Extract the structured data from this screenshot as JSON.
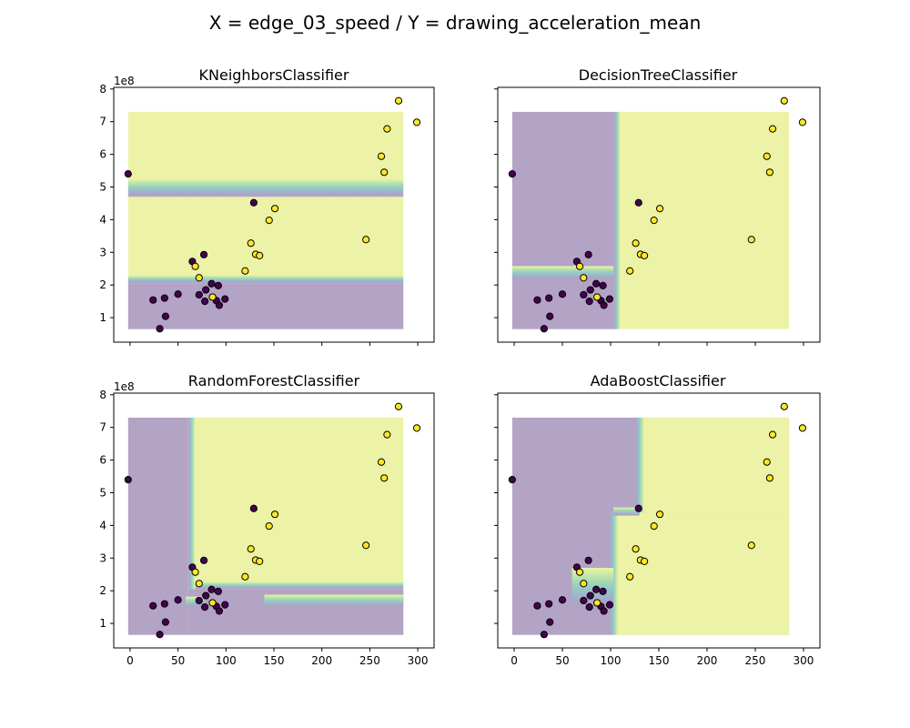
{
  "suptitle": "X = edge_03_speed / Y = drawing_acceleration_mean",
  "colors": {
    "class0_region": "#b3a3c4",
    "class1_region": "#ecf3a6",
    "class0_point": "#440154",
    "class1_point": "#fde725",
    "edge": "#000000",
    "boundary_band": [
      "#b3a3c4",
      "#a9a6c7",
      "#9fb4c9",
      "#97c4c7",
      "#9ad2bd",
      "#b1dfae",
      "#cdeba7",
      "#ecf3a6"
    ]
  },
  "chart_data": [
    {
      "type": "scatter",
      "title": "KNeighborsClassifier",
      "xlim": [
        -17,
        317
      ],
      "ylim": [
        25000000,
        805000000
      ],
      "x_ticks": [
        0,
        50,
        100,
        150,
        200,
        250,
        300
      ],
      "x_tick_labels_visible": false,
      "y_ticks": [
        100000000,
        200000000,
        300000000,
        400000000,
        500000000,
        600000000,
        700000000,
        800000000
      ],
      "y_tick_labels": [
        "1",
        "2",
        "3",
        "4",
        "5",
        "6",
        "7",
        "8"
      ],
      "y_tick_labels_visible": true,
      "y_offset_label": "1e8",
      "decision_grid": {
        "x_range": [
          -2,
          285
        ],
        "y_range": [
          65000000,
          730000000
        ]
      },
      "regions": [
        {
          "y_from": 65000000,
          "y_to": 205000000,
          "class": 0
        },
        {
          "y_from": 205000000,
          "y_to": 230000000,
          "class": "band"
        },
        {
          "y_from": 230000000,
          "y_to": 470000000,
          "class": 1
        },
        {
          "y_from": 470000000,
          "y_to": 525000000,
          "class": "band"
        },
        {
          "y_from": 525000000,
          "y_to": 730000000,
          "class": 1
        }
      ]
    },
    {
      "type": "scatter",
      "title": "DecisionTreeClassifier",
      "xlim": [
        -17,
        317
      ],
      "ylim": [
        25000000,
        805000000
      ],
      "x_ticks": [
        0,
        50,
        100,
        150,
        200,
        250,
        300
      ],
      "x_tick_labels_visible": false,
      "y_ticks": [
        100000000,
        200000000,
        300000000,
        400000000,
        500000000,
        600000000,
        700000000,
        800000000
      ],
      "y_tick_labels": [
        "1",
        "2",
        "3",
        "4",
        "5",
        "6",
        "7",
        "8"
      ],
      "y_tick_labels_visible": false,
      "y_offset_label": "",
      "decision_grid": {
        "x_range": [
          -2,
          285
        ],
        "y_range": [
          65000000,
          730000000
        ]
      },
      "regions": [
        {
          "x_from": -2,
          "x_to": 103,
          "y_from": 65000000,
          "y_to": 730000000,
          "class": 0
        },
        {
          "x_from": 103,
          "x_to": 110,
          "y_from": 65000000,
          "y_to": 730000000,
          "class": "band"
        },
        {
          "x_from": 110,
          "x_to": 285,
          "y_from": 65000000,
          "y_to": 730000000,
          "class": 1
        },
        {
          "x_from": -2,
          "x_to": 103,
          "y_from": 218000000,
          "y_to": 258000000,
          "class": "band"
        }
      ]
    },
    {
      "type": "scatter",
      "title": "RandomForestClassifier",
      "xlim": [
        -17,
        317
      ],
      "ylim": [
        25000000,
        805000000
      ],
      "x_ticks": [
        0,
        50,
        100,
        150,
        200,
        250,
        300
      ],
      "x_tick_labels": [
        "0",
        "50",
        "100",
        "150",
        "200",
        "250",
        "300"
      ],
      "x_tick_labels_visible": true,
      "y_ticks": [
        100000000,
        200000000,
        300000000,
        400000000,
        500000000,
        600000000,
        700000000,
        800000000
      ],
      "y_tick_labels": [
        "1",
        "2",
        "3",
        "4",
        "5",
        "6",
        "7",
        "8"
      ],
      "y_tick_labels_visible": true,
      "y_offset_label": "1e8",
      "decision_grid": {
        "x_range": [
          -2,
          285
        ],
        "y_range": [
          65000000,
          730000000
        ]
      },
      "regions": [
        {
          "x_from": -2,
          "x_to": 60,
          "y_from": 65000000,
          "y_to": 730000000,
          "class": 0
        },
        {
          "x_from": 60,
          "x_to": 285,
          "y_from": 65000000,
          "y_to": 205000000,
          "class": 0
        },
        {
          "x_from": 60,
          "x_to": 68,
          "y_from": 205000000,
          "y_to": 730000000,
          "class": "band"
        },
        {
          "x_from": 68,
          "x_to": 285,
          "y_from": 205000000,
          "y_to": 228000000,
          "class": "band"
        },
        {
          "x_from": 68,
          "x_to": 285,
          "y_from": 228000000,
          "y_to": 730000000,
          "class": 1
        },
        {
          "x_from": 140,
          "x_to": 285,
          "y_from": 150000000,
          "y_to": 188000000,
          "class": "band"
        },
        {
          "x_from": 58,
          "x_to": 78,
          "y_from": 150000000,
          "y_to": 182000000,
          "class": "band"
        }
      ]
    },
    {
      "type": "scatter",
      "title": "AdaBoostClassifier",
      "xlim": [
        -17,
        317
      ],
      "ylim": [
        25000000,
        805000000
      ],
      "x_ticks": [
        0,
        50,
        100,
        150,
        200,
        250,
        300
      ],
      "x_tick_labels": [
        "0",
        "50",
        "100",
        "150",
        "200",
        "250",
        "300"
      ],
      "x_tick_labels_visible": true,
      "y_ticks": [
        100000000,
        200000000,
        300000000,
        400000000,
        500000000,
        600000000,
        700000000,
        800000000
      ],
      "y_tick_labels": [
        "1",
        "2",
        "3",
        "4",
        "5",
        "6",
        "7",
        "8"
      ],
      "y_tick_labels_visible": false,
      "y_offset_label": "",
      "decision_grid": {
        "x_range": [
          -2,
          285
        ],
        "y_range": [
          65000000,
          730000000
        ]
      },
      "regions": [
        {
          "x_from": -2,
          "x_to": 285,
          "y_from": 65000000,
          "y_to": 730000000,
          "class": 0
        },
        {
          "x_from": 103,
          "x_to": 285,
          "y_from": 65000000,
          "y_to": 440000000,
          "class": 1
        },
        {
          "x_from": 130,
          "x_to": 285,
          "y_from": 440000000,
          "y_to": 730000000,
          "class": 1
        },
        {
          "x_from": 125,
          "x_to": 135,
          "y_from": 440000000,
          "y_to": 730000000,
          "class": "band"
        },
        {
          "x_from": 98,
          "x_to": 108,
          "y_from": 65000000,
          "y_to": 440000000,
          "class": "band"
        },
        {
          "x_from": 103,
          "x_to": 130,
          "y_from": 430000000,
          "y_to": 455000000,
          "class": "band"
        },
        {
          "x_from": 60,
          "x_to": 103,
          "y_from": 150000000,
          "y_to": 270000000,
          "class": "band"
        }
      ]
    }
  ],
  "points": [
    {
      "x": -2,
      "y": 540000000,
      "class": 0
    },
    {
      "x": 24,
      "y": 154000000,
      "class": 0
    },
    {
      "x": 31,
      "y": 66000000,
      "class": 0
    },
    {
      "x": 36,
      "y": 160000000,
      "class": 0
    },
    {
      "x": 37,
      "y": 104000000,
      "class": 0
    },
    {
      "x": 50,
      "y": 172000000,
      "class": 0
    },
    {
      "x": 65,
      "y": 272000000,
      "class": 0
    },
    {
      "x": 72,
      "y": 170000000,
      "class": 0
    },
    {
      "x": 77,
      "y": 293000000,
      "class": 0
    },
    {
      "x": 78,
      "y": 150000000,
      "class": 0
    },
    {
      "x": 79,
      "y": 185000000,
      "class": 0
    },
    {
      "x": 85,
      "y": 204000000,
      "class": 0
    },
    {
      "x": 90,
      "y": 152000000,
      "class": 0
    },
    {
      "x": 92,
      "y": 198000000,
      "class": 0
    },
    {
      "x": 93,
      "y": 138000000,
      "class": 0
    },
    {
      "x": 99,
      "y": 157000000,
      "class": 0
    },
    {
      "x": 129,
      "y": 452000000,
      "class": 0
    },
    {
      "x": 68,
      "y": 257000000,
      "class": 1
    },
    {
      "x": 72,
      "y": 222000000,
      "class": 1
    },
    {
      "x": 86,
      "y": 163000000,
      "class": 1
    },
    {
      "x": 120,
      "y": 243000000,
      "class": 1
    },
    {
      "x": 126,
      "y": 328000000,
      "class": 1
    },
    {
      "x": 131,
      "y": 294000000,
      "class": 1
    },
    {
      "x": 135,
      "y": 290000000,
      "class": 1
    },
    {
      "x": 145,
      "y": 398000000,
      "class": 1
    },
    {
      "x": 151,
      "y": 434000000,
      "class": 1
    },
    {
      "x": 246,
      "y": 339000000,
      "class": 1
    },
    {
      "x": 262,
      "y": 594000000,
      "class": 1
    },
    {
      "x": 265,
      "y": 545000000,
      "class": 1
    },
    {
      "x": 268,
      "y": 678000000,
      "class": 1
    },
    {
      "x": 280,
      "y": 764000000,
      "class": 1
    },
    {
      "x": 299,
      "y": 698000000,
      "class": 1
    }
  ]
}
